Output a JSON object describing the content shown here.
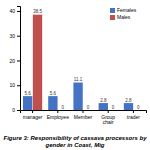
{
  "chart_data": {
    "type": "bar",
    "title": "Figure 3: Responsibility of cassava processors by gender in Coast, Mig",
    "categories": [
      "manager",
      "Employee",
      "Member",
      "Group chair",
      "trader"
    ],
    "series": [
      {
        "name": "Females",
        "color": "#4472C4",
        "values": [
          5.6,
          5.6,
          11.1,
          2.8,
          2.8
        ]
      },
      {
        "name": "Males",
        "color": "#C0504D",
        "values": [
          38.5,
          0,
          0,
          0,
          0
        ]
      }
    ],
    "ylim": [
      0,
      42
    ],
    "yticks": [
      0,
      10,
      20,
      30,
      40
    ],
    "data_labels": true,
    "legend": "upper right",
    "grid": false
  }
}
